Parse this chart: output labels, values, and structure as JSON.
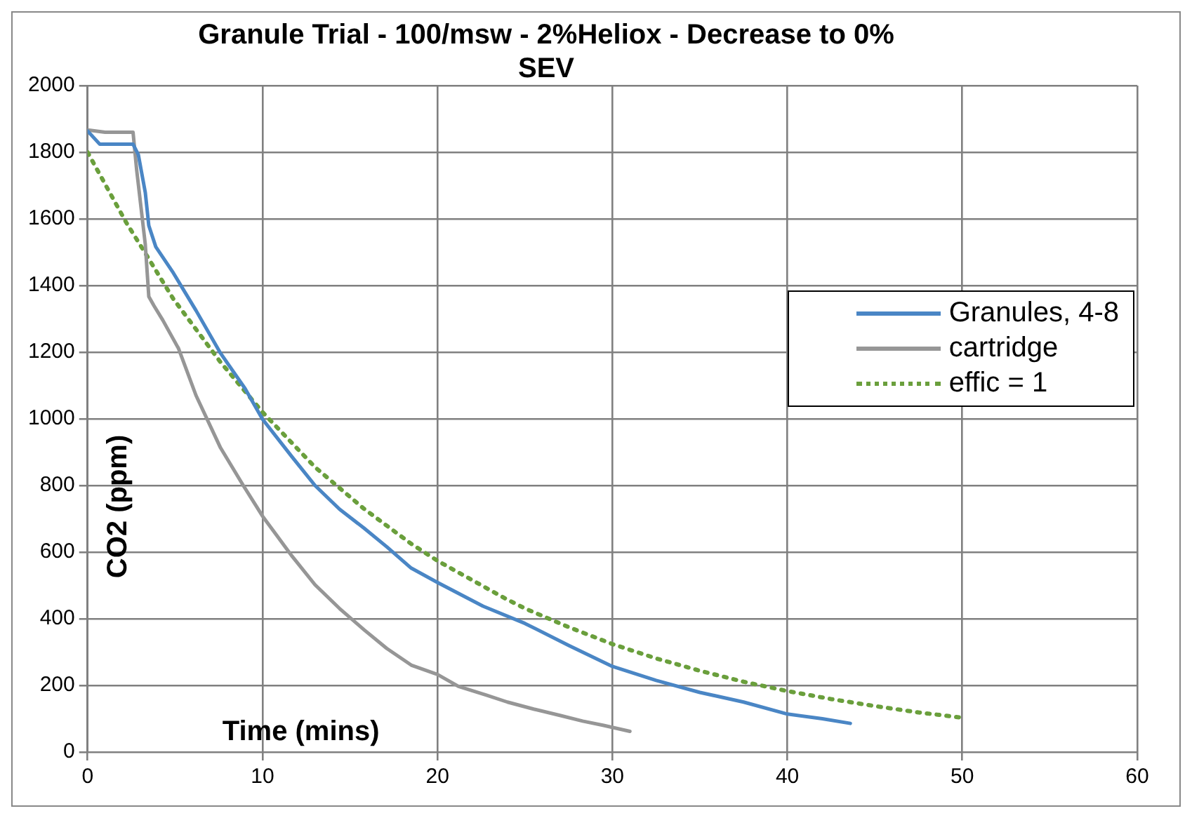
{
  "chart_data": {
    "type": "line",
    "title": "Granule Trial - 100/msw - 2%Heliox - Decrease to 0% SEV",
    "xlabel": "Time (mins)",
    "ylabel": "CO2 (ppm)",
    "xlim": [
      0,
      60
    ],
    "xticks": [
      0,
      10,
      20,
      30,
      40,
      50,
      60
    ],
    "ylim": [
      0,
      2000
    ],
    "yticks": [
      0,
      200,
      400,
      600,
      800,
      1000,
      1200,
      1400,
      1600,
      1800,
      2000
    ],
    "grid": true,
    "legend": "right",
    "marker": "none",
    "series": [
      {
        "name": "Granules, 4-8",
        "color": "#4a86c5",
        "line_style": "solid",
        "x": [
          0,
          0.7,
          2.6,
          2.9,
          3.3,
          3.5,
          3.9,
          4.9,
          6.2,
          7.6,
          9,
          10,
          11.7,
          13,
          14.4,
          15.8,
          17.1,
          18.5,
          20,
          22.6,
          25,
          27.5,
          30,
          32.5,
          35,
          37.5,
          40,
          42,
          43.6
        ],
        "values": [
          1864,
          1824,
          1824,
          1793,
          1679,
          1580,
          1516,
          1438,
          1325,
          1197,
          1091,
          999,
          885,
          800,
          729,
          672,
          616,
          552,
          509,
          438,
          386,
          320,
          257,
          215,
          179,
          150,
          114,
          100,
          86
        ]
      },
      {
        "name": "cartridge",
        "color": "#969696",
        "line_style": "solid",
        "x": [
          0,
          1,
          2.6,
          2.8,
          3.3,
          3.5,
          3.8,
          4.3,
          5.2,
          6.2,
          7.6,
          8.9,
          10,
          11.7,
          13,
          14.4,
          15.8,
          17.1,
          18.5,
          20,
          21.2,
          22.8,
          24,
          25.5,
          27,
          28.3,
          29.5,
          31
        ],
        "values": [
          1867,
          1860,
          1860,
          1750,
          1523,
          1367,
          1339,
          1296,
          1211,
          1070,
          913,
          800,
          708,
          587,
          502,
          431,
          367,
          311,
          261,
          233,
          197,
          171,
          150,
          129,
          110,
          93,
          80,
          62
        ]
      },
      {
        "name": "effic = 1",
        "color": "#6a9f3c",
        "line_style": "dotted",
        "x": [
          0,
          2.2,
          3.5,
          4.9,
          7.6,
          10,
          13,
          15.8,
          18.5,
          20,
          23.9,
          25,
          27.5,
          30,
          32.5,
          35,
          37.5,
          40,
          42.5,
          45,
          47.5,
          50
        ],
        "values": [
          1800,
          1590,
          1480,
          1360,
          1170,
          1020,
          855,
          730,
          625,
          574,
          460,
          431,
          375,
          324,
          281,
          244,
          211,
          183,
          159,
          138,
          119,
          103
        ]
      }
    ]
  }
}
